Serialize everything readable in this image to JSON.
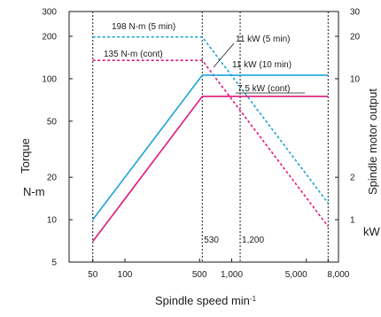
{
  "chart_data": {
    "type": "line",
    "title": "",
    "xlabel": "Spindle speed",
    "xlabel_unit": "min",
    "xlabel_exp": "-1",
    "ylabel_left": "Torque",
    "ylabel_left_unit": "N-m",
    "ylabel_right": "Spindle motor output",
    "ylabel_right_unit": "kW",
    "x_scale": "log",
    "y_scale": "log",
    "xlim": [
      30,
      10000
    ],
    "ylim_left": [
      5,
      300
    ],
    "ylim_right": [
      0.5,
      30
    ],
    "x_ticks": [
      {
        "value": 50,
        "label": "50"
      },
      {
        "value": 100,
        "label": "100"
      },
      {
        "value": 500,
        "label": "500"
      },
      {
        "value": 1000,
        "label": "1,000"
      },
      {
        "value": 5000,
        "label": "5,000"
      },
      {
        "value": 8000,
        "label": "8,000"
      }
    ],
    "y_ticks_left": [
      {
        "value": 5,
        "label": "5"
      },
      {
        "value": 10,
        "label": "10"
      },
      {
        "value": 20,
        "label": "20"
      },
      {
        "value": 50,
        "label": "50"
      },
      {
        "value": 100,
        "label": "100"
      },
      {
        "value": 200,
        "label": "200"
      },
      {
        "value": 300,
        "label": "300"
      }
    ],
    "y_ticks_right": [
      {
        "value": 1,
        "label": "1"
      },
      {
        "value": 2,
        "label": "2"
      },
      {
        "value": 10,
        "label": "10"
      },
      {
        "value": 20,
        "label": "20"
      },
      {
        "value": 30,
        "label": "30"
      }
    ],
    "series": [
      {
        "name": "11 kW (5 min)",
        "color": "#1aa3d9",
        "style": "dashed",
        "axis": "left",
        "points": [
          [
            50,
            198
          ],
          [
            530,
            198
          ],
          [
            8000,
            13.1
          ]
        ]
      },
      {
        "name": "135 N-m (cont)",
        "color": "#e0197d",
        "style": "dashed",
        "axis": "left",
        "points": [
          [
            50,
            135
          ],
          [
            530,
            135
          ],
          [
            8000,
            8.95
          ]
        ]
      },
      {
        "name": "11 kW (10 min)",
        "color": "#1aa3d9",
        "style": "solid",
        "axis": "right",
        "points": [
          [
            50,
            1.0
          ],
          [
            530,
            10.6
          ],
          [
            8000,
            10.6
          ]
        ]
      },
      {
        "name": "7.5 kW (cont)",
        "color": "#e0197d",
        "style": "solid",
        "axis": "right",
        "points": [
          [
            50,
            0.7
          ],
          [
            530,
            7.5
          ],
          [
            8000,
            7.5
          ]
        ]
      }
    ],
    "vlines": [
      {
        "x": 50,
        "label": ""
      },
      {
        "x": 530,
        "label": "530"
      },
      {
        "x": 1200,
        "label": "1,200"
      },
      {
        "x": 8000,
        "label": ""
      }
    ],
    "annotations": [
      {
        "text": "198 N-m (5 min)",
        "x": 100,
        "y": 198
      },
      {
        "text": "135 N-m (cont)",
        "x": 100,
        "y": 135
      },
      {
        "text": "11 kW (5 min)",
        "x": 2400,
        "y": 198
      },
      {
        "text": "11 kW (10 min)",
        "x": 2400,
        "y": 118
      },
      {
        "text": "7.5 kW (cont)",
        "x": 2400,
        "y": 81
      }
    ],
    "grid": false,
    "legend": "none"
  }
}
